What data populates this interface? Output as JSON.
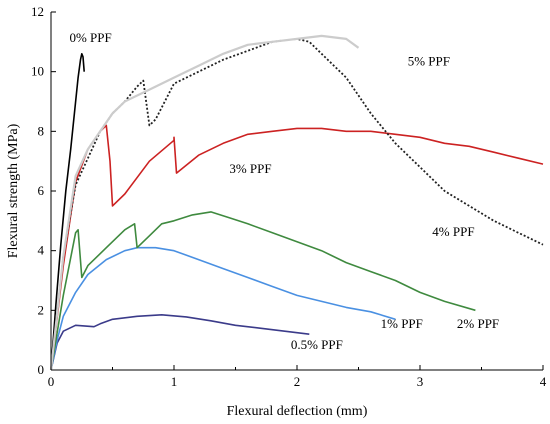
{
  "chart_data": {
    "type": "line",
    "title": "",
    "xlabel": "Flexural deflection (mm)",
    "ylabel": "Flexural strength (MPa)",
    "xlim": [
      0,
      4
    ],
    "ylim": [
      0,
      12
    ],
    "xticks": [
      0,
      1,
      2,
      3,
      4
    ],
    "yticks": [
      0,
      2,
      4,
      6,
      8,
      10,
      12
    ],
    "xtick_labels": [
      "0",
      "1",
      "2",
      "3",
      "4"
    ],
    "ytick_labels": [
      "0",
      "2",
      "4",
      "6",
      "8",
      "10",
      "12"
    ],
    "grid": false,
    "legend": "none",
    "series": [
      {
        "name": "0% PPF",
        "color": "#000000",
        "style": "solid",
        "x": [
          0,
          0.04,
          0.08,
          0.12,
          0.16,
          0.19,
          0.22,
          0.24,
          0.25,
          0.26,
          0.27
        ],
        "y": [
          0,
          2.2,
          4.2,
          6.0,
          7.4,
          8.6,
          9.8,
          10.4,
          10.6,
          10.5,
          10.0
        ]
      },
      {
        "name": "0.5% PPF",
        "color": "#3b3b8a",
        "style": "solid",
        "x": [
          0,
          0.05,
          0.1,
          0.2,
          0.35,
          0.4,
          0.5,
          0.7,
          0.9,
          1.1,
          1.3,
          1.5,
          1.7,
          1.9,
          2.1
        ],
        "y": [
          0,
          0.9,
          1.3,
          1.5,
          1.45,
          1.55,
          1.7,
          1.8,
          1.85,
          1.78,
          1.65,
          1.5,
          1.4,
          1.3,
          1.2
        ]
      },
      {
        "name": "1% PPF",
        "color": "#4a90e2",
        "style": "solid",
        "x": [
          0,
          0.05,
          0.1,
          0.2,
          0.3,
          0.45,
          0.6,
          0.7,
          0.85,
          1.0,
          1.2,
          1.4,
          1.6,
          1.8,
          2.0,
          2.2,
          2.4,
          2.6,
          2.8
        ],
        "y": [
          0,
          1.0,
          1.8,
          2.6,
          3.2,
          3.7,
          4.0,
          4.1,
          4.1,
          4.0,
          3.7,
          3.4,
          3.1,
          2.8,
          2.5,
          2.3,
          2.1,
          1.95,
          1.7
        ]
      },
      {
        "name": "2% PPF",
        "color": "#3f8a3f",
        "style": "solid",
        "x": [
          0,
          0.1,
          0.2,
          0.22,
          0.25,
          0.3,
          0.45,
          0.6,
          0.68,
          0.7,
          0.8,
          0.9,
          1.0,
          1.15,
          1.3,
          1.45,
          1.6,
          1.8,
          2.0,
          2.2,
          2.4,
          2.6,
          2.8,
          3.0,
          3.2,
          3.45
        ],
        "y": [
          0,
          2.5,
          4.6,
          4.7,
          3.1,
          3.5,
          4.1,
          4.7,
          4.9,
          4.1,
          4.5,
          4.9,
          5.0,
          5.2,
          5.3,
          5.1,
          4.9,
          4.6,
          4.3,
          4.0,
          3.6,
          3.3,
          3.0,
          2.6,
          2.3,
          2.0
        ]
      },
      {
        "name": "3% PPF",
        "color": "#cc2222",
        "style": "solid",
        "x": [
          0,
          0.1,
          0.2,
          0.3,
          0.4,
          0.45,
          0.48,
          0.5,
          0.6,
          0.8,
          1.0,
          1.0,
          1.02,
          1.2,
          1.4,
          1.6,
          1.8,
          2.0,
          2.2,
          2.4,
          2.6,
          2.8,
          3.0,
          3.2,
          3.4,
          3.6,
          3.8,
          4.0
        ],
        "y": [
          0,
          3.5,
          6.3,
          7.4,
          8.0,
          8.2,
          7.0,
          5.5,
          5.9,
          7.0,
          7.7,
          7.8,
          6.6,
          7.2,
          7.6,
          7.9,
          8.0,
          8.1,
          8.1,
          8.0,
          8.0,
          7.9,
          7.8,
          7.6,
          7.5,
          7.3,
          7.1,
          6.9
        ]
      },
      {
        "name": "4% PPF",
        "color": "#222222",
        "style": "dotted",
        "x": [
          0,
          0.1,
          0.2,
          0.3,
          0.4,
          0.5,
          0.6,
          0.7,
          0.75,
          0.8,
          0.85,
          1.0,
          1.2,
          1.4,
          1.6,
          1.8,
          2.0,
          2.1,
          2.2,
          2.4,
          2.6,
          2.8,
          3.0,
          3.2,
          3.4,
          3.6,
          3.8,
          4.0
        ],
        "y": [
          0,
          3.8,
          6.2,
          7.1,
          8.0,
          8.6,
          9.0,
          9.5,
          9.7,
          8.2,
          8.4,
          9.6,
          10.0,
          10.4,
          10.7,
          11.0,
          11.1,
          11.0,
          10.6,
          9.8,
          8.6,
          7.6,
          6.8,
          6.0,
          5.5,
          5.0,
          4.6,
          4.2
        ]
      },
      {
        "name": "5% PPF",
        "color": "#cccccc",
        "style": "solid",
        "x": [
          0,
          0.1,
          0.2,
          0.3,
          0.4,
          0.5,
          0.6,
          0.8,
          1.0,
          1.2,
          1.4,
          1.6,
          1.8,
          2.0,
          2.2,
          2.4,
          2.5
        ],
        "y": [
          0,
          3.8,
          6.5,
          7.4,
          8.0,
          8.6,
          9.0,
          9.4,
          9.8,
          10.2,
          10.6,
          10.9,
          11.0,
          11.1,
          11.2,
          11.1,
          10.8
        ]
      }
    ],
    "annotations": [
      {
        "text": "0% PPF",
        "x": 0.15,
        "y": 11.0
      },
      {
        "text": "5% PPF",
        "x": 2.9,
        "y": 10.2
      },
      {
        "text": "3% PPF",
        "x": 1.45,
        "y": 6.6
      },
      {
        "text": "4% PPF",
        "x": 3.1,
        "y": 4.5
      },
      {
        "text": "1% PPF",
        "x": 2.68,
        "y": 1.4
      },
      {
        "text": "2% PPF",
        "x": 3.3,
        "y": 1.4
      },
      {
        "text": "0.5% PPF",
        "x": 1.95,
        "y": 0.7
      }
    ]
  }
}
